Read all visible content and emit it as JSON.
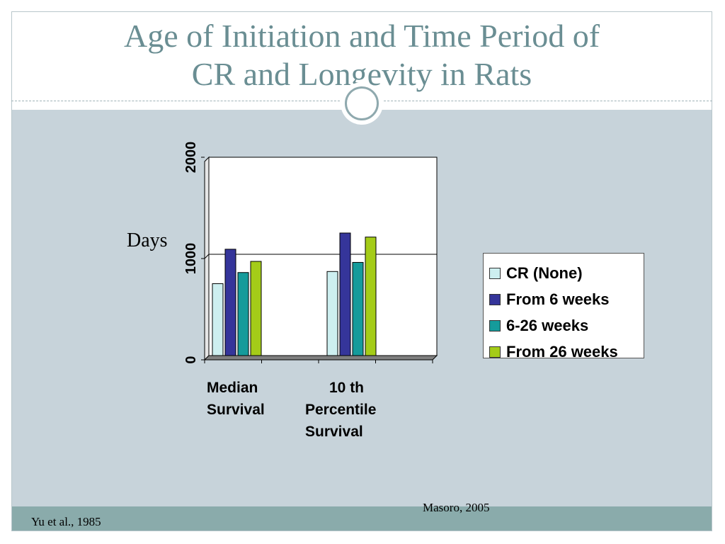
{
  "slide": {
    "title_line1": "Age of Initiation and Time Period of",
    "title_line2": "CR and Longevity in Rats",
    "citation_right": "Masoro, 2005",
    "citation_left": "Yu et al., 1985"
  },
  "chart_data": {
    "type": "bar",
    "title": "",
    "xlabel": "",
    "ylabel": "Days",
    "ylim": [
      0,
      2000
    ],
    "yticks": [
      "0",
      "1000",
      "2000"
    ],
    "grid": true,
    "legend_position": "right",
    "categories": [
      [
        "Median",
        "Survival"
      ],
      [
        "10 th",
        "Percentile",
        "Survival"
      ]
    ],
    "series": [
      {
        "name": "CR (None)",
        "color": "#cdeff0",
        "values": [
          710,
          830
        ]
      },
      {
        "name": "From 6 weeks",
        "color": "#35359a",
        "values": [
          1050,
          1210
        ]
      },
      {
        "name": "6-26 weeks",
        "color": "#159b9b",
        "values": [
          820,
          920
        ]
      },
      {
        "name": "From 26 weeks",
        "color": "#a4cc18",
        "values": [
          930,
          1170
        ]
      }
    ]
  }
}
